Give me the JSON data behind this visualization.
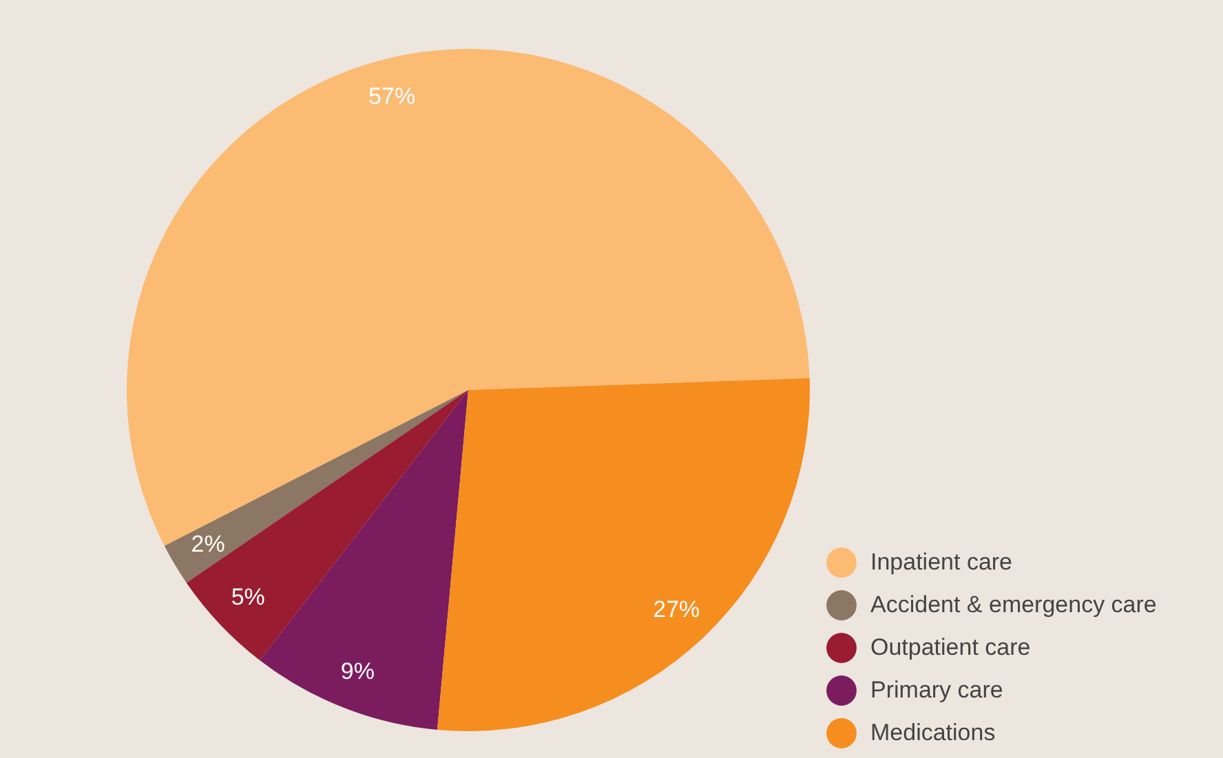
{
  "chart_data": {
    "type": "pie",
    "categories": [
      "Inpatient care",
      "Accident & emergency care",
      "Outpatient care",
      "Primary care",
      "Medications"
    ],
    "values": [
      57,
      2,
      5,
      9,
      27
    ],
    "colors": [
      "#fbbb73",
      "#8b7763",
      "#991c30",
      "#7b1c5e",
      "#f68d1f"
    ],
    "value_labels": [
      "57%",
      "2%",
      "5%",
      "9%",
      "27%"
    ],
    "legend": "bottom right"
  }
}
